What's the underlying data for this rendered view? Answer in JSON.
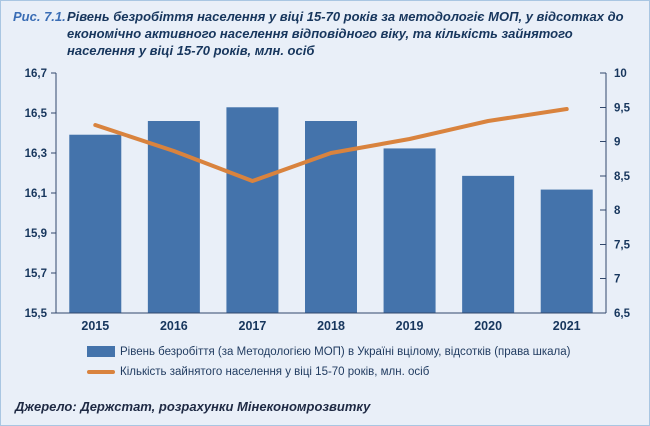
{
  "figure": {
    "label": "Рис. 7.1.",
    "source": "Джерело: Держстат, розрахунки Мінекономрозвитку"
  },
  "chart_data": {
    "type": "bar+line",
    "title": "Рівень безробіття населення у віці 15-70 років за методологіє МОП, у відсотках до економічно активного населення відповідного віку, та кількість зайнятого населення у віці 15-70 років, млн. осіб",
    "categories": [
      "2015",
      "2016",
      "2017",
      "2018",
      "2019",
      "2020",
      "2021"
    ],
    "series": [
      {
        "name": "Рівень безробіття (за Методологією МОП) в Україні вцілому, відсотків (права шкала)",
        "type": "bar",
        "axis": "right",
        "color": "#4473ab",
        "values": [
          9.1,
          9.3,
          9.5,
          9.3,
          8.9,
          8.5,
          8.3
        ]
      },
      {
        "name": "Кількість зайнятого населення у віці 15-70 років, млн. осіб",
        "type": "line",
        "axis": "left",
        "color": "#d9833e",
        "values": [
          16.44,
          16.31,
          16.16,
          16.3,
          16.37,
          16.46,
          16.52
        ]
      }
    ],
    "left_axis": {
      "min": 15.5,
      "max": 16.7,
      "step": 0.2,
      "tick_labels": [
        "16,7",
        "16,5",
        "16,3",
        "16,1",
        "15,9",
        "15,7",
        "15,5"
      ]
    },
    "right_axis": {
      "min": 6.5,
      "max": 10,
      "step": 0.5,
      "tick_labels": [
        "10",
        "9,5",
        "9",
        "8,5",
        "8",
        "7,5",
        "7",
        "6,5"
      ]
    },
    "grid": false,
    "legend_position": "bottom"
  },
  "colors": {
    "background": "#e9eff8",
    "border": "#a9c6e2",
    "bar": "#4473ab",
    "line": "#d9833e",
    "axis": "#31476b",
    "figure_number": "#3a6db5",
    "title_text": "#17365d"
  }
}
